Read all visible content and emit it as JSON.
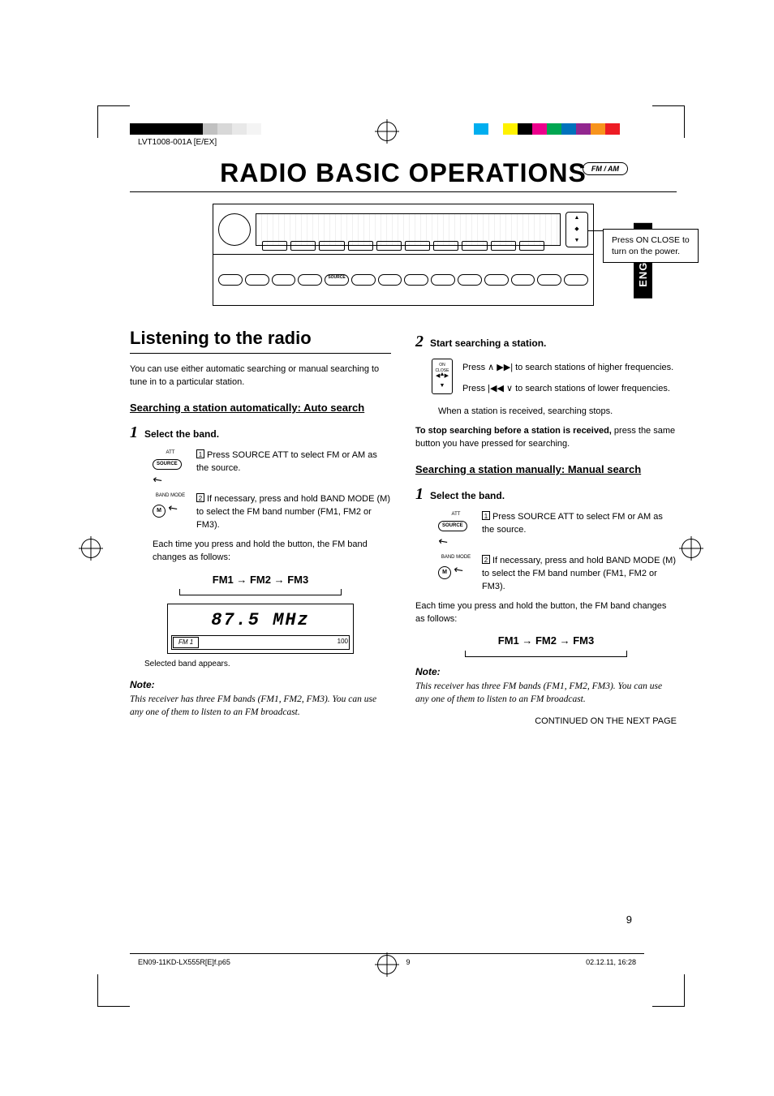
{
  "doc_id": "LVT1008-001A [E/EX]",
  "colorbar_left": [
    "#000000",
    "#000000",
    "#000000",
    "#000000",
    "#000000",
    "#c0c0c0",
    "#d8d8d8",
    "#e8e8e8",
    "#f4f4f4",
    "#ffffff",
    "#ffffff",
    "#ffffff"
  ],
  "colorbar_right": [
    "#00aeef",
    "#ffffff",
    "#fff200",
    "#000000",
    "#ec008c",
    "#00a651",
    "#0072bc",
    "#92278f",
    "#f7941d",
    "#ed1c24"
  ],
  "title": "RADIO BASIC OPERATIONS",
  "fm_am_badge": "FM / AM",
  "lang_tab": "ENGLISH",
  "callout_power": "Press ON CLOSE to turn on the power.",
  "source_btn_label": "SOURCE",
  "left": {
    "h2": "Listening to the radio",
    "intro": "You can use either automatic searching or manual searching to tune in to a particular station.",
    "h3": "Searching a station automatically: Auto search",
    "step1_label": "Select the band.",
    "step1_a_label_top": "ATT",
    "step1_a_label": "SOURCE",
    "step1_a_text": "Press SOURCE ATT to select FM or AM as the source.",
    "step1_b_label_top": "BAND MODE",
    "step1_b_label": "M",
    "step1_b_text": "If necessary, press and hold BAND MODE (M) to select the FM band number (FM1, FM2 or FM3).",
    "cycle_intro": "Each time you press and hold the button, the FM band changes as follows:",
    "cycle": "FM1 → FM2 → FM3",
    "lcd_main": "87.5 MHz",
    "lcd_left": "FM 1",
    "lcd_right": "100",
    "lcd_caption": "Selected band appears.",
    "note_h": "Note:",
    "note_body": "This receiver has three FM bands (FM1, FM2, FM3). You can use any one of them to listen to an FM broadcast."
  },
  "right": {
    "step2_label": "Start searching a station.",
    "pad_on": "ON CLOSE",
    "search_up": "Press  ∧  ▶▶|  to search stations of higher frequencies.",
    "search_dn": "Press  |◀◀  ∨  to search stations of lower frequencies.",
    "received": "When a station is received, searching stops.",
    "stop_bold": "To stop searching before a station is received,",
    "stop_rest": " press the same button you have pressed for searching.",
    "h3": "Searching a station manually: Manual search",
    "step1_label": "Select the band.",
    "step1_a_text": "Press SOURCE ATT to select FM or AM as the source.",
    "step1_b_text": "If necessary, press and hold BAND MODE (M) to select the FM band number (FM1, FM2 or FM3).",
    "cycle_intro": "Each time you press and hold the button, the FM band changes as follows:",
    "cycle": "FM1 → FM2 → FM3",
    "note_h": "Note:",
    "note_body": "This receiver has three FM bands (FM1, FM2, FM3). You can use any one of them to listen to an FM broadcast.",
    "continued": "CONTINUED ON THE NEXT PAGE"
  },
  "page_number": "9",
  "footer_file": "EN09-11KD-LX555R[E]f.p65",
  "footer_page": "9",
  "footer_date": "02.12.11, 16:28"
}
